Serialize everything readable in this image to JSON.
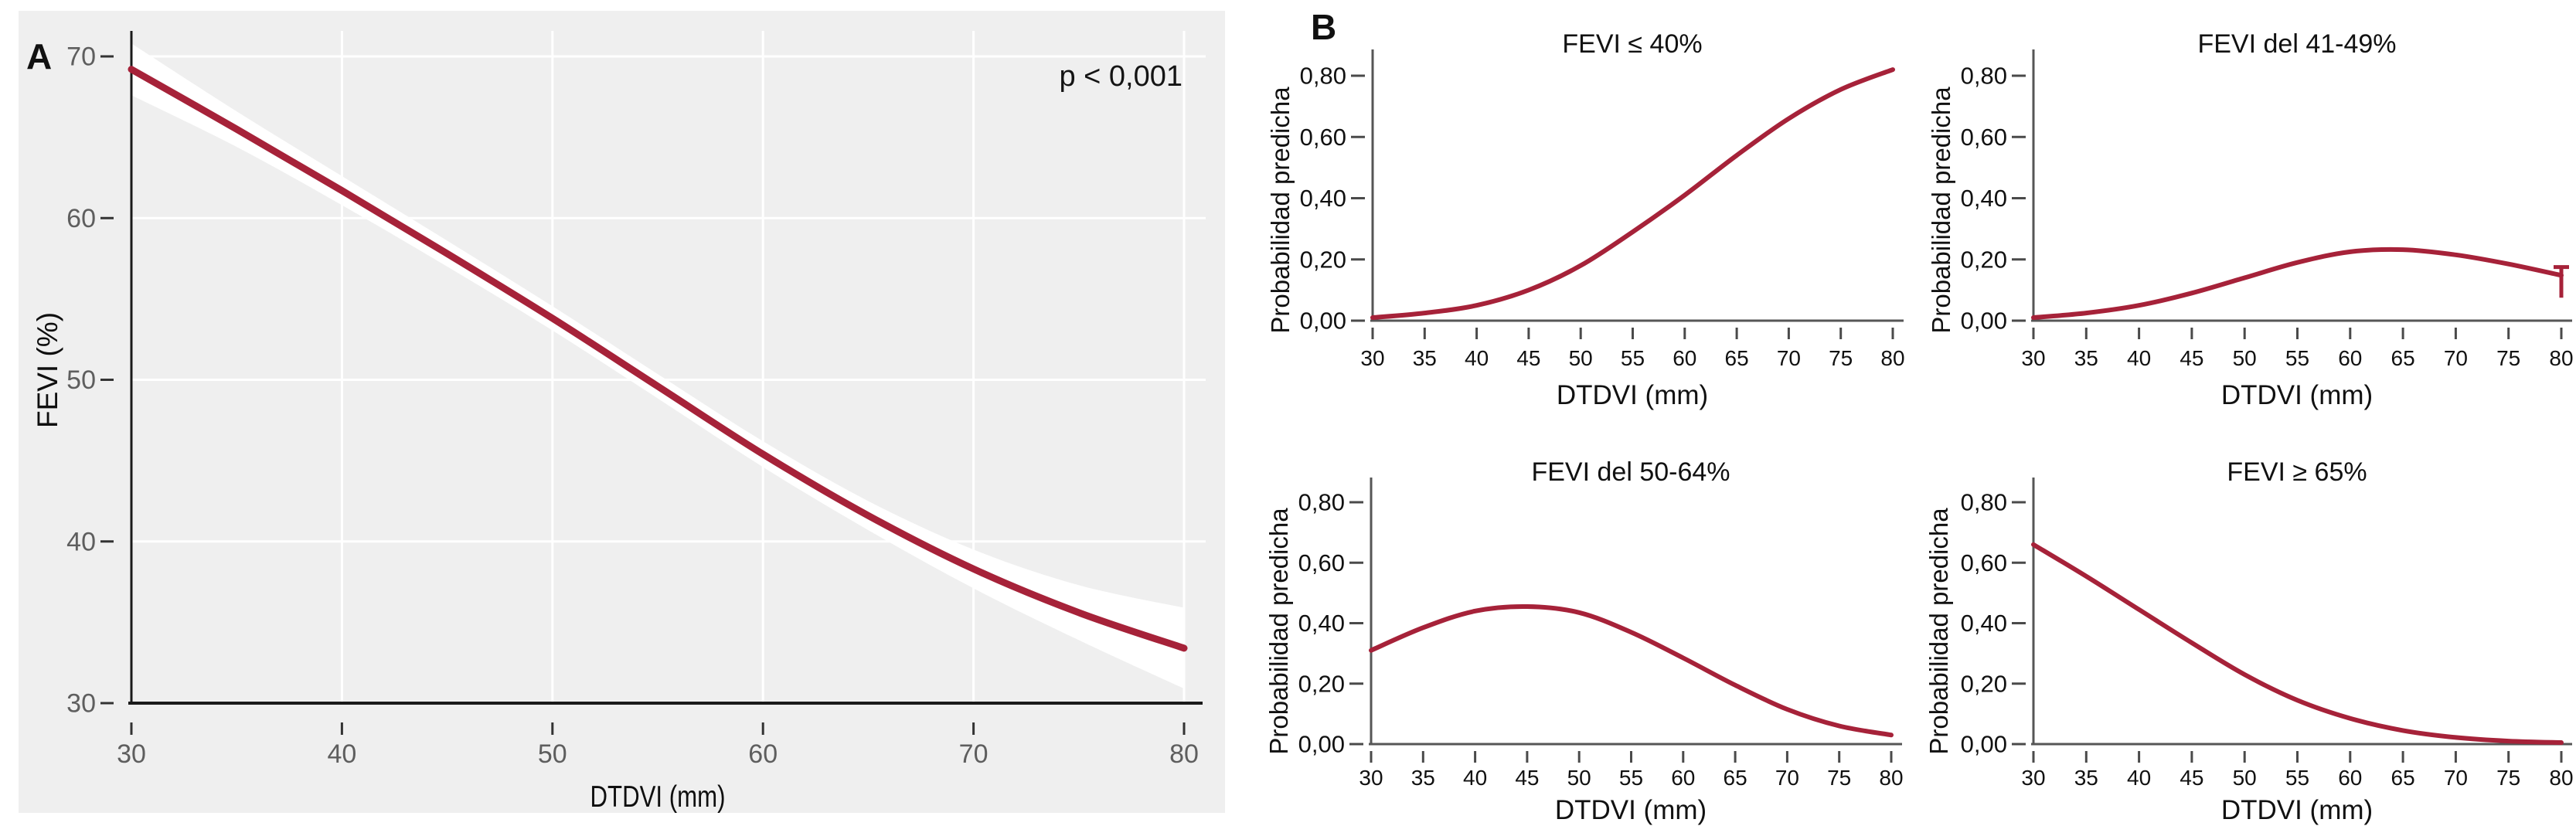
{
  "accent_color": "#A62239",
  "panel_a": {
    "label": "A",
    "bg": "#EFEFEF"
  },
  "panel_b": {
    "label": "B"
  },
  "chart_data": [
    {
      "id": "panel-a",
      "type": "line",
      "title": "",
      "xlabel": "DTDVI (mm)",
      "ylabel": "FEVI (%)",
      "annotation": "p < 0,001",
      "x": [
        30,
        35,
        40,
        45,
        50,
        55,
        60,
        65,
        70,
        75,
        80
      ],
      "values": [
        69.2,
        65.5,
        61.7,
        57.8,
        53.8,
        49.6,
        45.4,
        41.6,
        38.3,
        35.6,
        33.4
      ],
      "band_halfwidth": [
        1.6,
        1.1,
        0.9,
        0.8,
        0.75,
        0.75,
        0.8,
        0.9,
        1.2,
        1.7,
        2.5
      ],
      "xticks": {
        "values": [
          30,
          40,
          50,
          60,
          70,
          80
        ],
        "labels": [
          "30",
          "40",
          "50",
          "60",
          "70",
          "80"
        ]
      },
      "yticks": {
        "values": [
          30,
          40,
          50,
          60,
          70
        ],
        "labels": [
          "30",
          "40",
          "50",
          "60",
          "70"
        ]
      },
      "xlim": [
        30,
        80
      ],
      "ylim": [
        30,
        71.5
      ],
      "grid": true,
      "legend": "none",
      "plot_bg": "#EFEFEF"
    },
    {
      "id": "b1",
      "type": "line",
      "title": "FEVI ≤ 40%",
      "xlabel": "DTDVI (mm)",
      "ylabel": "Probabilidad predicha",
      "x": [
        30,
        35,
        40,
        45,
        50,
        55,
        60,
        65,
        70,
        75,
        80
      ],
      "values": [
        0.01,
        0.025,
        0.05,
        0.1,
        0.18,
        0.29,
        0.41,
        0.54,
        0.66,
        0.755,
        0.82
      ],
      "xticks": {
        "values": [
          30,
          35,
          40,
          45,
          50,
          55,
          60,
          65,
          70,
          75,
          80
        ],
        "labels": [
          "30",
          "35",
          "40",
          "45",
          "50",
          "55",
          "60",
          "65",
          "70",
          "75",
          "80"
        ]
      },
      "yticks": {
        "values": [
          0,
          0.2,
          0.4,
          0.6,
          0.8
        ],
        "labels": [
          "0,00",
          "0,20",
          "0,40",
          "0,60",
          "0,80"
        ]
      },
      "xlim": [
        30,
        80
      ],
      "ylim": [
        0,
        0.9
      ],
      "grid": false,
      "legend": "none"
    },
    {
      "id": "b2",
      "type": "line",
      "title": "FEVI del 41-49%",
      "xlabel": "DTDVI (mm)",
      "ylabel": "Probabilidad predicha",
      "x": [
        30,
        35,
        40,
        45,
        50,
        55,
        60,
        65,
        70,
        75,
        80
      ],
      "values": [
        0.01,
        0.025,
        0.05,
        0.09,
        0.14,
        0.19,
        0.225,
        0.232,
        0.215,
        0.185,
        0.148
      ],
      "errorbar": {
        "x": 80,
        "low": 0.075,
        "high": 0.175,
        "cap": "top"
      },
      "xticks": {
        "values": [
          30,
          35,
          40,
          45,
          50,
          55,
          60,
          65,
          70,
          75,
          80
        ],
        "labels": [
          "30",
          "35",
          "40",
          "45",
          "50",
          "55",
          "60",
          "65",
          "70",
          "75",
          "80"
        ]
      },
      "yticks": {
        "values": [
          0,
          0.2,
          0.4,
          0.6,
          0.8
        ],
        "labels": [
          "0,00",
          "0,20",
          "0,40",
          "0,60",
          "0,80"
        ]
      },
      "xlim": [
        30,
        80
      ],
      "ylim": [
        0,
        0.9
      ],
      "grid": false,
      "legend": "none"
    },
    {
      "id": "b3",
      "type": "line",
      "title": "FEVI del 50-64%",
      "xlabel": "DTDVI (mm)",
      "ylabel": "Probabilidad predicha",
      "x": [
        30,
        35,
        40,
        45,
        50,
        55,
        60,
        65,
        70,
        75,
        80
      ],
      "values": [
        0.31,
        0.385,
        0.44,
        0.455,
        0.435,
        0.37,
        0.285,
        0.195,
        0.115,
        0.06,
        0.03
      ],
      "xticks": {
        "values": [
          30,
          35,
          40,
          45,
          50,
          55,
          60,
          65,
          70,
          75,
          80
        ],
        "labels": [
          "30",
          "35",
          "40",
          "45",
          "50",
          "55",
          "60",
          "65",
          "70",
          "75",
          "80"
        ]
      },
      "yticks": {
        "values": [
          0,
          0.2,
          0.4,
          0.6,
          0.8
        ],
        "labels": [
          "0,00",
          "0,20",
          "0,40",
          "0,60",
          "0,80"
        ]
      },
      "xlim": [
        30,
        80
      ],
      "ylim": [
        0,
        0.9
      ],
      "grid": false,
      "legend": "none"
    },
    {
      "id": "b4",
      "type": "line",
      "title": "FEVI ≥ 65%",
      "xlabel": "DTDVI (mm)",
      "ylabel": "Probabilidad predicha",
      "x": [
        30,
        35,
        40,
        45,
        50,
        55,
        60,
        65,
        70,
        75,
        80
      ],
      "values": [
        0.66,
        0.555,
        0.445,
        0.335,
        0.23,
        0.145,
        0.085,
        0.045,
        0.022,
        0.01,
        0.005
      ],
      "xticks": {
        "values": [
          30,
          35,
          40,
          45,
          50,
          55,
          60,
          65,
          70,
          75,
          80
        ],
        "labels": [
          "30",
          "35",
          "40",
          "45",
          "50",
          "55",
          "60",
          "65",
          "70",
          "75",
          "80"
        ]
      },
      "yticks": {
        "values": [
          0,
          0.2,
          0.4,
          0.6,
          0.8
        ],
        "labels": [
          "0,00",
          "0,20",
          "0,40",
          "0,60",
          "0,80"
        ]
      },
      "xlim": [
        30,
        80
      ],
      "ylim": [
        0,
        0.9
      ],
      "grid": false,
      "legend": "none"
    }
  ]
}
